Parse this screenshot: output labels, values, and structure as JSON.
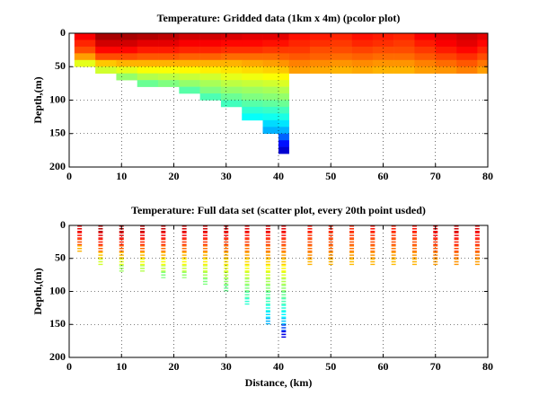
{
  "chart_data": [
    {
      "type": "pcolor",
      "title": "Temperature: Gridded data (1km x 4m) (pcolor plot)",
      "ylabel": "Depth,(m)",
      "colormap": "jet",
      "clim": [
        0,
        1
      ],
      "xlim": [
        0,
        80
      ],
      "xticks": [
        0,
        10,
        20,
        30,
        40,
        50,
        60,
        70,
        80
      ],
      "ylim": [
        0,
        200
      ],
      "yreverse": true,
      "yticks": [
        0,
        50,
        100,
        150,
        200
      ],
      "grid": true,
      "x_edges": [
        1,
        5,
        9,
        13,
        17,
        21,
        25,
        29,
        33,
        37,
        40,
        42,
        46,
        50,
        54,
        58,
        62,
        66,
        70,
        74,
        78,
        80
      ],
      "y_edges": [
        0,
        10,
        20,
        30,
        40,
        50,
        60,
        70,
        80,
        90,
        100,
        110,
        120,
        130,
        140,
        150,
        160,
        170,
        180
      ],
      "values": [
        [
          0.88,
          0.96,
          0.96,
          0.95,
          0.94,
          0.92,
          0.92,
          0.91,
          0.9,
          0.9,
          0.9,
          0.86,
          0.85,
          0.84,
          0.86,
          0.85,
          0.84,
          0.88,
          0.9,
          0.92,
          0.9
        ],
        [
          0.84,
          0.92,
          0.92,
          0.9,
          0.9,
          0.88,
          0.88,
          0.87,
          0.87,
          0.86,
          0.86,
          0.84,
          0.83,
          0.82,
          0.84,
          0.83,
          0.82,
          0.85,
          0.88,
          0.9,
          0.87
        ],
        [
          0.8,
          0.87,
          0.87,
          0.85,
          0.85,
          0.84,
          0.84,
          0.83,
          0.83,
          0.82,
          0.82,
          0.82,
          0.8,
          0.8,
          0.81,
          0.8,
          0.8,
          0.82,
          0.85,
          0.87,
          0.84
        ],
        [
          0.72,
          0.8,
          0.8,
          0.79,
          0.79,
          0.78,
          0.78,
          0.77,
          0.77,
          0.77,
          0.78,
          0.79,
          0.78,
          0.77,
          0.78,
          0.77,
          0.77,
          0.79,
          0.81,
          0.83,
          0.8
        ],
        [
          0.6,
          0.68,
          0.7,
          0.7,
          0.7,
          0.7,
          0.7,
          0.7,
          0.71,
          0.72,
          0.73,
          0.75,
          0.74,
          0.73,
          0.74,
          0.73,
          0.73,
          0.75,
          0.77,
          0.79,
          0.76
        ],
        [
          null,
          0.58,
          0.6,
          0.62,
          0.62,
          0.63,
          0.64,
          0.65,
          0.66,
          0.67,
          0.68,
          0.72,
          0.71,
          0.7,
          0.71,
          0.7,
          0.7,
          0.72,
          0.73,
          0.75,
          0.72
        ],
        [
          null,
          null,
          0.52,
          0.55,
          0.56,
          0.57,
          0.58,
          0.6,
          0.61,
          0.62,
          0.63,
          null,
          null,
          null,
          null,
          null,
          null,
          null,
          null,
          null,
          null
        ],
        [
          null,
          null,
          null,
          0.48,
          0.5,
          0.52,
          0.54,
          0.56,
          0.57,
          0.58,
          0.59,
          null,
          null,
          null,
          null,
          null,
          null,
          null,
          null,
          null,
          null
        ],
        [
          null,
          null,
          null,
          null,
          null,
          0.46,
          0.5,
          0.52,
          0.53,
          0.54,
          0.55,
          null,
          null,
          null,
          null,
          null,
          null,
          null,
          null,
          null,
          null
        ],
        [
          null,
          null,
          null,
          null,
          null,
          null,
          0.45,
          0.48,
          0.5,
          0.51,
          0.52,
          null,
          null,
          null,
          null,
          null,
          null,
          null,
          null,
          null,
          null
        ],
        [
          null,
          null,
          null,
          null,
          null,
          null,
          null,
          0.44,
          0.46,
          0.47,
          0.48,
          null,
          null,
          null,
          null,
          null,
          null,
          null,
          null,
          null,
          null
        ],
        [
          null,
          null,
          null,
          null,
          null,
          null,
          null,
          null,
          0.42,
          0.43,
          0.44,
          null,
          null,
          null,
          null,
          null,
          null,
          null,
          null,
          null,
          null
        ],
        [
          null,
          null,
          null,
          null,
          null,
          null,
          null,
          null,
          0.38,
          0.39,
          0.4,
          null,
          null,
          null,
          null,
          null,
          null,
          null,
          null,
          null,
          null
        ],
        [
          null,
          null,
          null,
          null,
          null,
          null,
          null,
          null,
          null,
          0.34,
          0.35,
          null,
          null,
          null,
          null,
          null,
          null,
          null,
          null,
          null,
          null
        ],
        [
          null,
          null,
          null,
          null,
          null,
          null,
          null,
          null,
          null,
          0.3,
          0.3,
          null,
          null,
          null,
          null,
          null,
          null,
          null,
          null,
          null,
          null
        ],
        [
          null,
          null,
          null,
          null,
          null,
          null,
          null,
          null,
          null,
          null,
          0.22,
          null,
          null,
          null,
          null,
          null,
          null,
          null,
          null,
          null,
          null
        ],
        [
          null,
          null,
          null,
          null,
          null,
          null,
          null,
          null,
          null,
          null,
          0.14,
          null,
          null,
          null,
          null,
          null,
          null,
          null,
          null,
          null,
          null
        ],
        [
          null,
          null,
          null,
          null,
          null,
          null,
          null,
          null,
          null,
          null,
          0.08,
          null,
          null,
          null,
          null,
          null,
          null,
          null,
          null,
          null,
          null
        ]
      ]
    },
    {
      "type": "scatter",
      "title": "Temperature: Full data set (scatter plot, every 20th point usded)",
      "ylabel": "Depth,(m)",
      "xlabel": "Distance, (km)",
      "colormap": "jet",
      "clim": [
        0,
        1
      ],
      "xlim": [
        0,
        80
      ],
      "xticks": [
        0,
        10,
        20,
        30,
        40,
        50,
        60,
        70,
        80
      ],
      "ylim": [
        0,
        200
      ],
      "yreverse": true,
      "yticks": [
        0,
        50,
        100,
        150,
        200
      ],
      "grid": true,
      "x": [
        2,
        6,
        10,
        14,
        18,
        22,
        26,
        30,
        34,
        38,
        41,
        46,
        50,
        54,
        58,
        62,
        66,
        70,
        74,
        78
      ],
      "y": [
        5,
        15,
        25,
        35,
        45,
        55,
        65,
        75,
        85,
        95,
        105,
        115,
        125,
        135,
        145,
        155,
        165
      ],
      "values": [
        [
          0.9,
          0.95,
          0.95,
          0.94,
          0.93,
          0.92,
          0.92,
          0.91,
          0.9,
          0.9,
          0.9,
          0.86,
          0.85,
          0.84,
          0.86,
          0.85,
          0.86,
          0.9,
          0.92,
          0.9
        ],
        [
          0.86,
          0.9,
          0.9,
          0.89,
          0.88,
          0.88,
          0.87,
          0.87,
          0.86,
          0.86,
          0.86,
          0.83,
          0.82,
          0.82,
          0.83,
          0.82,
          0.83,
          0.87,
          0.89,
          0.87
        ],
        [
          0.8,
          0.85,
          0.85,
          0.84,
          0.84,
          0.83,
          0.83,
          0.82,
          0.82,
          0.82,
          0.82,
          0.8,
          0.8,
          0.79,
          0.8,
          0.8,
          0.8,
          0.83,
          0.85,
          0.84
        ],
        [
          0.7,
          0.78,
          0.78,
          0.77,
          0.77,
          0.77,
          0.76,
          0.76,
          0.76,
          0.77,
          0.77,
          0.77,
          0.77,
          0.76,
          0.77,
          0.76,
          0.77,
          0.79,
          0.81,
          0.8
        ],
        [
          null,
          0.68,
          0.69,
          0.69,
          0.7,
          0.7,
          0.7,
          0.7,
          0.71,
          0.72,
          0.72,
          0.74,
          0.73,
          0.72,
          0.73,
          0.72,
          0.73,
          0.75,
          0.77,
          0.76
        ],
        [
          null,
          0.58,
          0.6,
          0.61,
          0.62,
          0.63,
          0.64,
          0.65,
          0.66,
          0.67,
          0.68,
          0.7,
          0.7,
          0.69,
          0.7,
          0.69,
          0.7,
          0.72,
          0.73,
          0.72
        ],
        [
          null,
          null,
          0.53,
          0.55,
          0.56,
          0.57,
          0.58,
          0.6,
          0.61,
          0.62,
          0.63,
          null,
          null,
          null,
          null,
          null,
          null,
          null,
          null,
          null
        ],
        [
          null,
          null,
          null,
          null,
          0.5,
          0.52,
          0.54,
          0.56,
          0.57,
          0.58,
          0.59,
          null,
          null,
          null,
          null,
          null,
          null,
          null,
          null,
          null
        ],
        [
          null,
          null,
          null,
          null,
          null,
          null,
          0.5,
          0.52,
          0.53,
          0.54,
          0.55,
          null,
          null,
          null,
          null,
          null,
          null,
          null,
          null,
          null
        ],
        [
          null,
          null,
          null,
          null,
          null,
          null,
          null,
          0.48,
          0.5,
          0.51,
          0.52,
          null,
          null,
          null,
          null,
          null,
          null,
          null,
          null,
          null
        ],
        [
          null,
          null,
          null,
          null,
          null,
          null,
          null,
          null,
          0.46,
          0.47,
          0.48,
          null,
          null,
          null,
          null,
          null,
          null,
          null,
          null,
          null
        ],
        [
          null,
          null,
          null,
          null,
          null,
          null,
          null,
          null,
          0.42,
          0.44,
          0.45,
          null,
          null,
          null,
          null,
          null,
          null,
          null,
          null,
          null
        ],
        [
          null,
          null,
          null,
          null,
          null,
          null,
          null,
          null,
          null,
          0.4,
          0.41,
          null,
          null,
          null,
          null,
          null,
          null,
          null,
          null,
          null
        ],
        [
          null,
          null,
          null,
          null,
          null,
          null,
          null,
          null,
          null,
          0.35,
          0.37,
          null,
          null,
          null,
          null,
          null,
          null,
          null,
          null,
          null
        ],
        [
          null,
          null,
          null,
          null,
          null,
          null,
          null,
          null,
          null,
          0.3,
          0.32,
          null,
          null,
          null,
          null,
          null,
          null,
          null,
          null,
          null
        ],
        [
          null,
          null,
          null,
          null,
          null,
          null,
          null,
          null,
          null,
          null,
          0.2,
          null,
          null,
          null,
          null,
          null,
          null,
          null,
          null,
          null
        ],
        [
          null,
          null,
          null,
          null,
          null,
          null,
          null,
          null,
          null,
          null,
          0.1,
          null,
          null,
          null,
          null,
          null,
          null,
          null,
          null,
          null
        ]
      ]
    }
  ]
}
